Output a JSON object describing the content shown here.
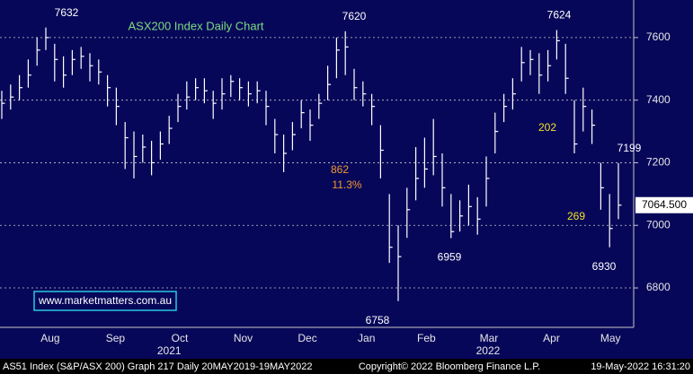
{
  "chart_data": {
    "type": "hlc",
    "title": "ASX200 Index Daily Chart",
    "title_color": "#7ddc7d",
    "color": "#ffffff",
    "highs": [
      7430,
      7450,
      7480,
      7530,
      7600,
      7632,
      7580,
      7540,
      7560,
      7570,
      7550,
      7530,
      7480,
      7440,
      7330,
      7300,
      7290,
      7270,
      7300,
      7350,
      7420,
      7460,
      7470,
      7470,
      7430,
      7470,
      7480,
      7470,
      7460,
      7460,
      7430,
      7340,
      7290,
      7330,
      7400,
      7370,
      7420,
      7510,
      7600,
      7620,
      7500,
      7460,
      7420,
      7320,
      7100,
      7000,
      7120,
      7250,
      7280,
      7340,
      7230,
      7100,
      7080,
      7130,
      7090,
      7220,
      7360,
      7420,
      7470,
      7570,
      7560,
      7550,
      7560,
      7624,
      7580,
      7400,
      7440,
      7370,
      7200,
      7100,
      7199
    ],
    "lows": [
      7340,
      7370,
      7400,
      7440,
      7510,
      7560,
      7460,
      7440,
      7480,
      7500,
      7460,
      7450,
      7380,
      7320,
      7180,
      7150,
      7200,
      7160,
      7210,
      7260,
      7330,
      7370,
      7400,
      7390,
      7340,
      7370,
      7410,
      7400,
      7380,
      7390,
      7320,
      7230,
      7170,
      7240,
      7310,
      7270,
      7340,
      7400,
      7470,
      7480,
      7400,
      7380,
      7320,
      7150,
      6880,
      6758,
      6960,
      7080,
      7120,
      7160,
      7060,
      6959,
      6980,
      7000,
      6970,
      7060,
      7230,
      7330,
      7370,
      7460,
      7480,
      7420,
      7460,
      7530,
      7420,
      7230,
      7300,
      7260,
      7050,
      6930,
      7020
    ],
    "closes": [
      7390,
      7410,
      7440,
      7480,
      7560,
      7600,
      7530,
      7480,
      7530,
      7540,
      7510,
      7490,
      7440,
      7380,
      7280,
      7220,
      7250,
      7200,
      7260,
      7310,
      7380,
      7410,
      7440,
      7430,
      7390,
      7420,
      7460,
      7440,
      7420,
      7430,
      7380,
      7290,
      7230,
      7290,
      7360,
      7320,
      7390,
      7450,
      7560,
      7570,
      7440,
      7420,
      7380,
      7240,
      6930,
      6900,
      7050,
      7150,
      7180,
      7220,
      7120,
      6980,
      7030,
      7060,
      7020,
      7150,
      7300,
      7380,
      7420,
      7520,
      7530,
      7480,
      7510,
      7590,
      7470,
      7260,
      7380,
      7320,
      7120,
      6990,
      7064.5
    ],
    "last_label": "7064.500",
    "ylim": [
      6674,
      7720
    ],
    "yticks": [
      6800,
      7000,
      7200,
      7400,
      7600
    ],
    "grid": true,
    "xticks": [
      {
        "value": 5.5,
        "label": "Aug"
      },
      {
        "value": 12.9,
        "label": "Sep"
      },
      {
        "value": 20.2,
        "label": "Oct"
      },
      {
        "value": 27.4,
        "label": "Nov"
      },
      {
        "value": 34.7,
        "label": "Dec"
      },
      {
        "value": 41.4,
        "label": "Jan"
      },
      {
        "value": 48.2,
        "label": "Feb"
      },
      {
        "value": 55.3,
        "label": "Mar"
      },
      {
        "value": 62.4,
        "label": "Apr"
      },
      {
        "value": 69.1,
        "label": "May"
      }
    ],
    "xyears": [
      {
        "value": 19,
        "label": "2021"
      },
      {
        "value": 55.2,
        "label": "2022"
      }
    ],
    "annotations": [
      {
        "text": "862",
        "color": "#f0982c"
      },
      {
        "text": "11.3%",
        "color": "#f0982c"
      },
      {
        "text": "202",
        "color": "#f2e02a"
      },
      {
        "text": "269",
        "color": "#f2e02a"
      }
    ],
    "watermark": "www.marketmatters.com.au"
  },
  "footer": {
    "left": "AS51 Index (S&P/ASX 200) Graph 217  Daily 20MAY2019-19MAY2022",
    "center": "Copyright© 2022 Bloomberg Finance L.P.",
    "right": "19-May-2022 16:31:20"
  }
}
